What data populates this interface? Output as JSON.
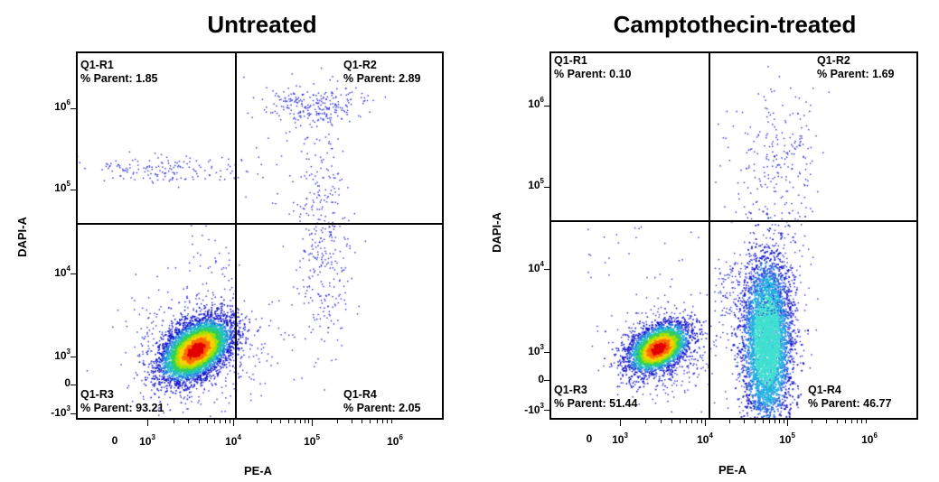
{
  "chart_data": [
    {
      "type": "scatter",
      "title": "Untreated",
      "xlabel": "PE-A",
      "ylabel": "DAPI-A",
      "x_ticks": [
        {
          "label": "0",
          "base": "",
          "exp": ""
        },
        {
          "label": "",
          "base": "10",
          "exp": "3"
        },
        {
          "label": "",
          "base": "10",
          "exp": "4"
        },
        {
          "label": "",
          "base": "10",
          "exp": "5"
        },
        {
          "label": "",
          "base": "10",
          "exp": "6"
        }
      ],
      "y_ticks": [
        {
          "label": "",
          "base": "10",
          "exp": "6"
        },
        {
          "label": "",
          "base": "10",
          "exp": "5"
        },
        {
          "label": "",
          "base": "10",
          "exp": "4"
        },
        {
          "label": "",
          "base": "10",
          "exp": "3"
        },
        {
          "label": "0",
          "base": "",
          "exp": ""
        },
        {
          "label": "-",
          "base": "10",
          "exp": "3"
        }
      ],
      "scale": "biexponential",
      "gates": {
        "x": 12000,
        "y": 35000
      },
      "quadrants": [
        {
          "name": "Q1-R1",
          "pct_label": "% Parent:",
          "pct": "1.85",
          "position": "top-left"
        },
        {
          "name": "Q1-R2",
          "pct_label": "% Parent:",
          "pct": "2.89",
          "position": "top-right"
        },
        {
          "name": "Q1-R3",
          "pct_label": "% Parent:",
          "pct": "93.21",
          "position": "bottom-left"
        },
        {
          "name": "Q1-R4",
          "pct_label": "% Parent:",
          "pct": "2.05",
          "position": "bottom-right"
        }
      ]
    },
    {
      "type": "scatter",
      "title": "Camptothecin-treated",
      "xlabel": "PE-A",
      "ylabel": "DAPI-A",
      "x_ticks": [
        {
          "label": "0",
          "base": "",
          "exp": ""
        },
        {
          "label": "",
          "base": "10",
          "exp": "3"
        },
        {
          "label": "",
          "base": "10",
          "exp": "4"
        },
        {
          "label": "",
          "base": "10",
          "exp": "5"
        },
        {
          "label": "",
          "base": "10",
          "exp": "6"
        }
      ],
      "y_ticks": [
        {
          "label": "",
          "base": "10",
          "exp": "6"
        },
        {
          "label": "",
          "base": "10",
          "exp": "5"
        },
        {
          "label": "",
          "base": "10",
          "exp": "4"
        },
        {
          "label": "",
          "base": "10",
          "exp": "3"
        },
        {
          "label": "0",
          "base": "",
          "exp": ""
        },
        {
          "label": "-",
          "base": "10",
          "exp": "3"
        }
      ],
      "scale": "biexponential",
      "gates": {
        "x": 12000,
        "y": 35000
      },
      "quadrants": [
        {
          "name": "Q1-R1",
          "pct_label": "% Parent:",
          "pct": "0.10",
          "position": "top-left"
        },
        {
          "name": "Q1-R2",
          "pct_label": "% Parent:",
          "pct": "1.69",
          "position": "top-right"
        },
        {
          "name": "Q1-R3",
          "pct_label": "% Parent:",
          "pct": "51.44",
          "position": "bottom-left"
        },
        {
          "name": "Q1-R4",
          "pct_label": "% Parent:",
          "pct": "46.77",
          "position": "bottom-right"
        }
      ]
    }
  ]
}
